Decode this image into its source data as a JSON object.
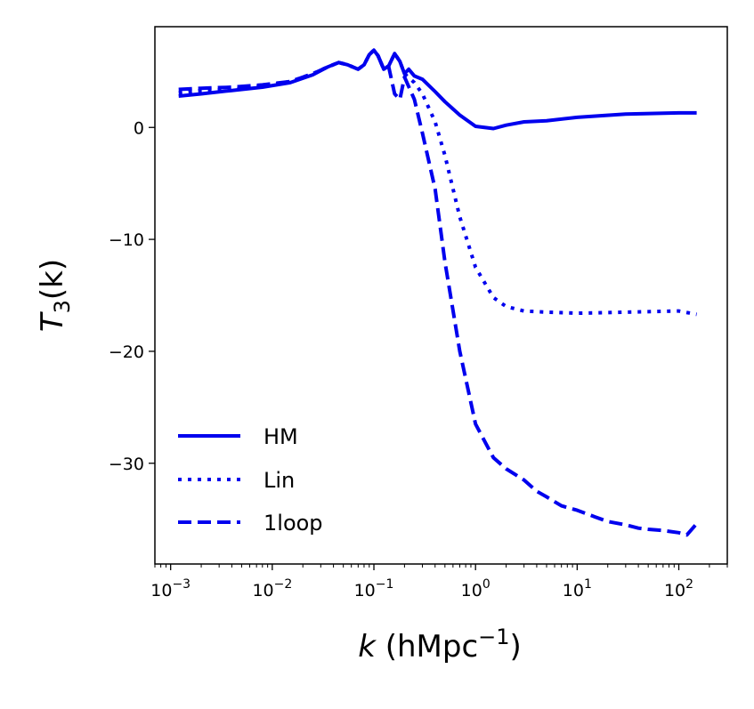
{
  "chart_data": {
    "type": "line",
    "xscale": "log",
    "xlim": [
      0.0007,
      300
    ],
    "ylim": [
      -39,
      9
    ],
    "ylabel": "T3(k)",
    "xlabel": "k (hMpc^-1)",
    "ylabel_parts": {
      "main": "T",
      "sub": "3",
      "arg": "(k)"
    },
    "xlabel_parts": {
      "var": "k",
      "unit": " (hMpc",
      "sup": "−1",
      "close": ")"
    },
    "xticks": [
      {
        "value": 0.001,
        "base": "10",
        "exp": "−3"
      },
      {
        "value": 0.01,
        "base": "10",
        "exp": "−2"
      },
      {
        "value": 0.1,
        "base": "10",
        "exp": "−1"
      },
      {
        "value": 1,
        "base": "10",
        "exp": "0"
      },
      {
        "value": 10,
        "base": "10",
        "exp": "1"
      },
      {
        "value": 100,
        "base": "10",
        "exp": "2"
      }
    ],
    "yticks": [
      {
        "value": 0,
        "label": "0"
      },
      {
        "value": -10,
        "label": "−10"
      },
      {
        "value": -20,
        "label": "−20"
      },
      {
        "value": -30,
        "label": "−30"
      }
    ],
    "legend_position": "lower-left",
    "series": [
      {
        "name": "HM",
        "color": "#0000ee",
        "style": "solid",
        "x": [
          0.0012,
          0.002,
          0.004,
          0.008,
          0.015,
          0.025,
          0.035,
          0.045,
          0.055,
          0.07,
          0.08,
          0.09,
          0.1,
          0.11,
          0.125,
          0.14,
          0.16,
          0.18,
          0.2,
          0.22,
          0.25,
          0.3,
          0.4,
          0.5,
          0.7,
          1.0,
          1.5,
          2.0,
          3.0,
          5.0,
          10,
          30,
          100,
          150
        ],
        "y": [
          2.8,
          3.0,
          3.3,
          3.6,
          4.0,
          4.7,
          5.4,
          5.8,
          5.6,
          5.2,
          5.6,
          6.5,
          6.9,
          6.4,
          5.2,
          5.5,
          6.6,
          5.9,
          4.8,
          5.2,
          4.6,
          4.3,
          3.2,
          2.3,
          1.1,
          0.1,
          -0.1,
          0.2,
          0.5,
          0.6,
          0.9,
          1.2,
          1.3,
          1.3
        ]
      },
      {
        "name": "Lin",
        "color": "#0000ee",
        "style": "dotted",
        "x": [
          0.0012,
          0.002,
          0.004,
          0.008,
          0.015,
          0.025,
          0.035,
          0.045,
          0.055,
          0.07,
          0.08,
          0.09,
          0.1,
          0.11,
          0.125,
          0.14,
          0.16,
          0.18,
          0.2,
          0.25,
          0.3,
          0.4,
          0.5,
          0.7,
          1.0,
          1.5,
          2.0,
          3.0,
          5.0,
          10,
          30,
          100,
          150
        ],
        "y": [
          3.1,
          3.3,
          3.4,
          3.7,
          4.1,
          4.8,
          5.4,
          5.8,
          5.6,
          5.2,
          5.6,
          6.5,
          6.9,
          6.4,
          5.2,
          5.5,
          6.6,
          5.9,
          4.8,
          4.0,
          3.0,
          0.5,
          -2.5,
          -8.0,
          -12.5,
          -15.2,
          -16.0,
          -16.4,
          -16.5,
          -16.6,
          -16.5,
          -16.4,
          -16.7
        ]
      },
      {
        "name": "1loop",
        "color": "#0000ee",
        "style": "dashed",
        "x": [
          0.0012,
          0.002,
          0.004,
          0.008,
          0.015,
          0.025,
          0.035,
          0.045,
          0.055,
          0.07,
          0.08,
          0.09,
          0.1,
          0.11,
          0.125,
          0.14,
          0.16,
          0.18,
          0.2,
          0.25,
          0.3,
          0.4,
          0.5,
          0.7,
          1.0,
          1.5,
          2.0,
          3.0,
          4.0,
          5.0,
          7.0,
          10,
          15,
          20,
          30,
          40,
          50,
          70,
          100,
          120,
          150
        ],
        "y": [
          3.4,
          3.5,
          3.6,
          3.8,
          4.1,
          4.8,
          5.4,
          5.8,
          5.6,
          5.2,
          5.6,
          6.5,
          6.9,
          6.4,
          5.2,
          5.4,
          3.0,
          2.5,
          4.5,
          2.5,
          -0.5,
          -5.5,
          -12.0,
          -20.0,
          -26.5,
          -29.5,
          -30.5,
          -31.5,
          -32.5,
          -33.0,
          -33.8,
          -34.2,
          -34.8,
          -35.2,
          -35.5,
          -35.8,
          -35.9,
          -36.0,
          -36.2,
          -36.4,
          -35.4
        ]
      }
    ]
  }
}
